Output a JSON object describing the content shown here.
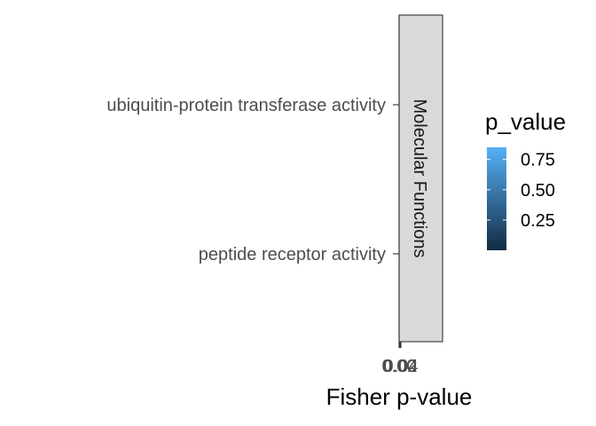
{
  "chart_data": {
    "type": "bar",
    "orientation": "horizontal",
    "categories": [
      "ubiquitin-protein transferase activity",
      "peptide receptor activity"
    ],
    "facet": "Molecular Functions",
    "xlabel": "Fisher p-value",
    "x_tick_labels": [
      "0.00",
      "0.02",
      "0.04"
    ],
    "legend": {
      "title": "p_value",
      "breaks": [
        "0.75",
        "0.50",
        "0.25"
      ],
      "break_values": [
        0.75,
        0.5,
        0.25
      ],
      "range": [
        0.0,
        0.85
      ],
      "low_color": "#132B43",
      "high_color": "#56B1F7",
      "placement": "right"
    },
    "grid": false
  }
}
